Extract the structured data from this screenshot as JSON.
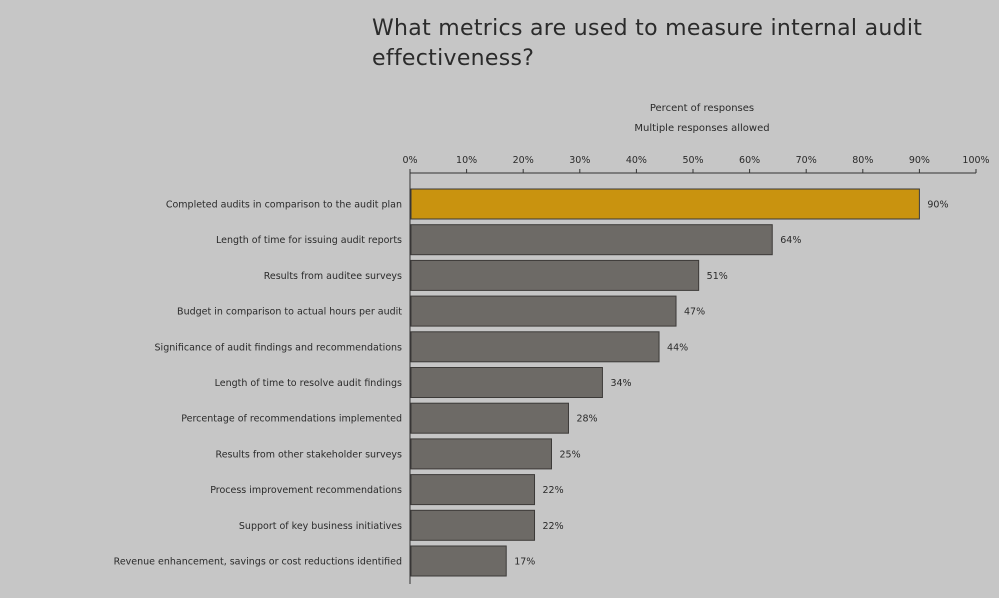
{
  "chart_data": {
    "type": "bar",
    "orientation": "horizontal",
    "title": "What metrics are used to measure internal audit effectiveness?",
    "xlabel_lines": [
      "Percent of responses",
      "Multiple responses allowed"
    ],
    "ticks": [
      "0%",
      "10%",
      "20%",
      "30%",
      "40%",
      "50%",
      "60%",
      "70%",
      "80%",
      "90%",
      "100%"
    ],
    "xlim": [
      0,
      100
    ],
    "grid": false,
    "categories": [
      "Completed audits in comparison to the audit plan",
      "Length of time for issuing audit reports",
      "Results from auditee surveys",
      "Budget in comparison to actual hours per audit",
      "Significance of audit findings and recommendations",
      "Length of time to resolve audit findings",
      "Percentage of recommendations implemented",
      "Results from other stakeholder surveys",
      "Process improvement recommendations",
      "Support of key business initiatives",
      "Revenue enhancement, savings or cost reductions identified"
    ],
    "values": [
      90,
      64,
      51,
      47,
      44,
      34,
      28,
      25,
      22,
      22,
      17
    ],
    "value_labels": [
      "90%",
      "64%",
      "51%",
      "47%",
      "44%",
      "34%",
      "28%",
      "25%",
      "22%",
      "22%",
      "17%"
    ],
    "colors": {
      "highlight": "#c9930f",
      "bar": "#6d6a66",
      "bar_stroke": "#3c3a38",
      "background": "#c6c6c6",
      "axis": "#333333"
    },
    "highlight_index": 0
  }
}
